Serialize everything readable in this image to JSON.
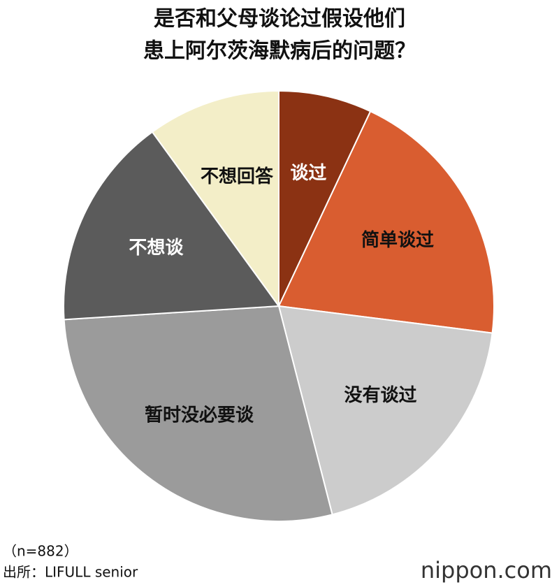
{
  "chart_data": {
    "type": "pie",
    "title": [
      "是否和父母谈论过假设他们",
      "患上阿尔茨海默病后的问题？"
    ],
    "categories": [
      "谈过",
      "简单谈过",
      "没有谈过",
      "暂时没必要谈",
      "不想谈",
      "不想回答"
    ],
    "values": [
      7,
      20,
      19,
      28,
      16,
      10
    ],
    "colors": [
      "#8b3213",
      "#d95d30",
      "#cccccc",
      "#9b9b9b",
      "#5b5b5b",
      "#f3eec8"
    ],
    "label_colors": [
      "#ffffff",
      "#111111",
      "#111111",
      "#111111",
      "#ffffff",
      "#111111"
    ],
    "sample": "（n=882）",
    "source": "出所：LIFULL senior",
    "logo": "nippon.com"
  }
}
